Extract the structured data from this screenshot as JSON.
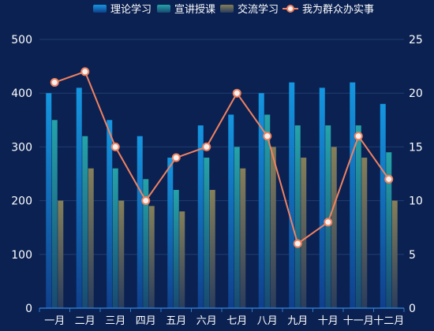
{
  "chart_data": {
    "type": "bar",
    "categories": [
      "一月",
      "二月",
      "三月",
      "四月",
      "五月",
      "六月",
      "七月",
      "八月",
      "九月",
      "十月",
      "十一月",
      "十二月"
    ],
    "series": [
      {
        "name": "理论学习",
        "type": "bar",
        "axis": "left",
        "values": [
          400,
          410,
          350,
          320,
          280,
          340,
          360,
          400,
          420,
          410,
          420,
          380
        ]
      },
      {
        "name": "宣讲授课",
        "type": "bar",
        "axis": "left",
        "values": [
          350,
          320,
          260,
          240,
          220,
          280,
          300,
          360,
          340,
          340,
          340,
          290
        ]
      },
      {
        "name": "交流学习",
        "type": "bar",
        "axis": "left",
        "values": [
          200,
          260,
          200,
          190,
          180,
          220,
          260,
          300,
          280,
          300,
          280,
          200
        ]
      },
      {
        "name": "我为群众办实事",
        "type": "line",
        "axis": "right",
        "values": [
          21,
          22,
          15,
          10,
          14,
          15,
          20,
          16,
          6,
          8,
          16,
          12
        ]
      }
    ],
    "y_left": {
      "min": 0,
      "max": 500,
      "ticks": [
        0,
        100,
        200,
        300,
        400,
        500
      ]
    },
    "y_right": {
      "min": 0,
      "max": 25,
      "ticks": [
        0,
        5,
        10,
        15,
        20,
        25
      ]
    },
    "legend_position": "top-center",
    "grid": true,
    "colors": {
      "background": "#0b2152",
      "bar1_top": "#1596e0",
      "bar1_bottom": "#0f3f8c",
      "bar2_top": "#25a3a9",
      "bar2_bottom": "#174a72",
      "bar3_top": "#857f59",
      "bar3_bottom": "#2b3d5c",
      "line": "#f0825f",
      "marker_fill": "#f2f2f2",
      "axis": "#2d79c9",
      "grid": "#1f3d70",
      "text": "#ffffff"
    }
  }
}
